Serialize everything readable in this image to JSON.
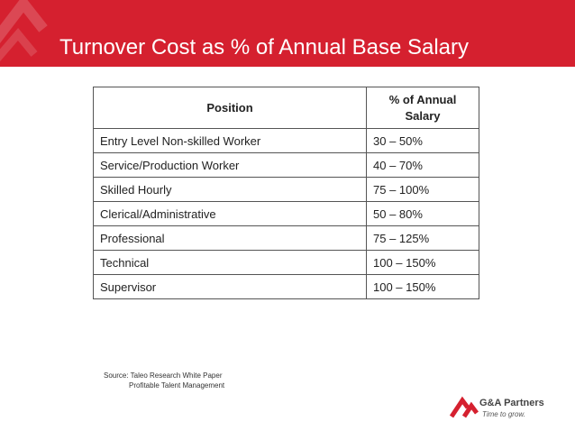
{
  "slide": {
    "title": "Turnover Cost as % of Annual Base Salary"
  },
  "table": {
    "headers": {
      "position": "Position",
      "pct": "% of Annual Salary"
    },
    "rows": [
      {
        "position": "Entry Level Non-skilled Worker",
        "pct": "30 – 50%"
      },
      {
        "position": "Service/Production Worker",
        "pct": "40 – 70%"
      },
      {
        "position": "Skilled Hourly",
        "pct": "75 – 100%"
      },
      {
        "position": "Clerical/Administrative",
        "pct": "50 – 80%"
      },
      {
        "position": "Professional",
        "pct": "75 – 125%"
      },
      {
        "position": "Technical",
        "pct": "100 – 150%"
      },
      {
        "position": "Supervisor",
        "pct": "100 – 150%"
      }
    ]
  },
  "source": {
    "line1": "Source: Taleo Research White Paper",
    "line2": "Profitable Talent Management"
  },
  "logo": {
    "name": "G&A Partners",
    "tagline": "Time to grow.",
    "icon": "ga-partners-logo-icon",
    "color": "#d5202f"
  },
  "colors": {
    "banner": "#d5202f",
    "title_text": "#ffffff"
  }
}
